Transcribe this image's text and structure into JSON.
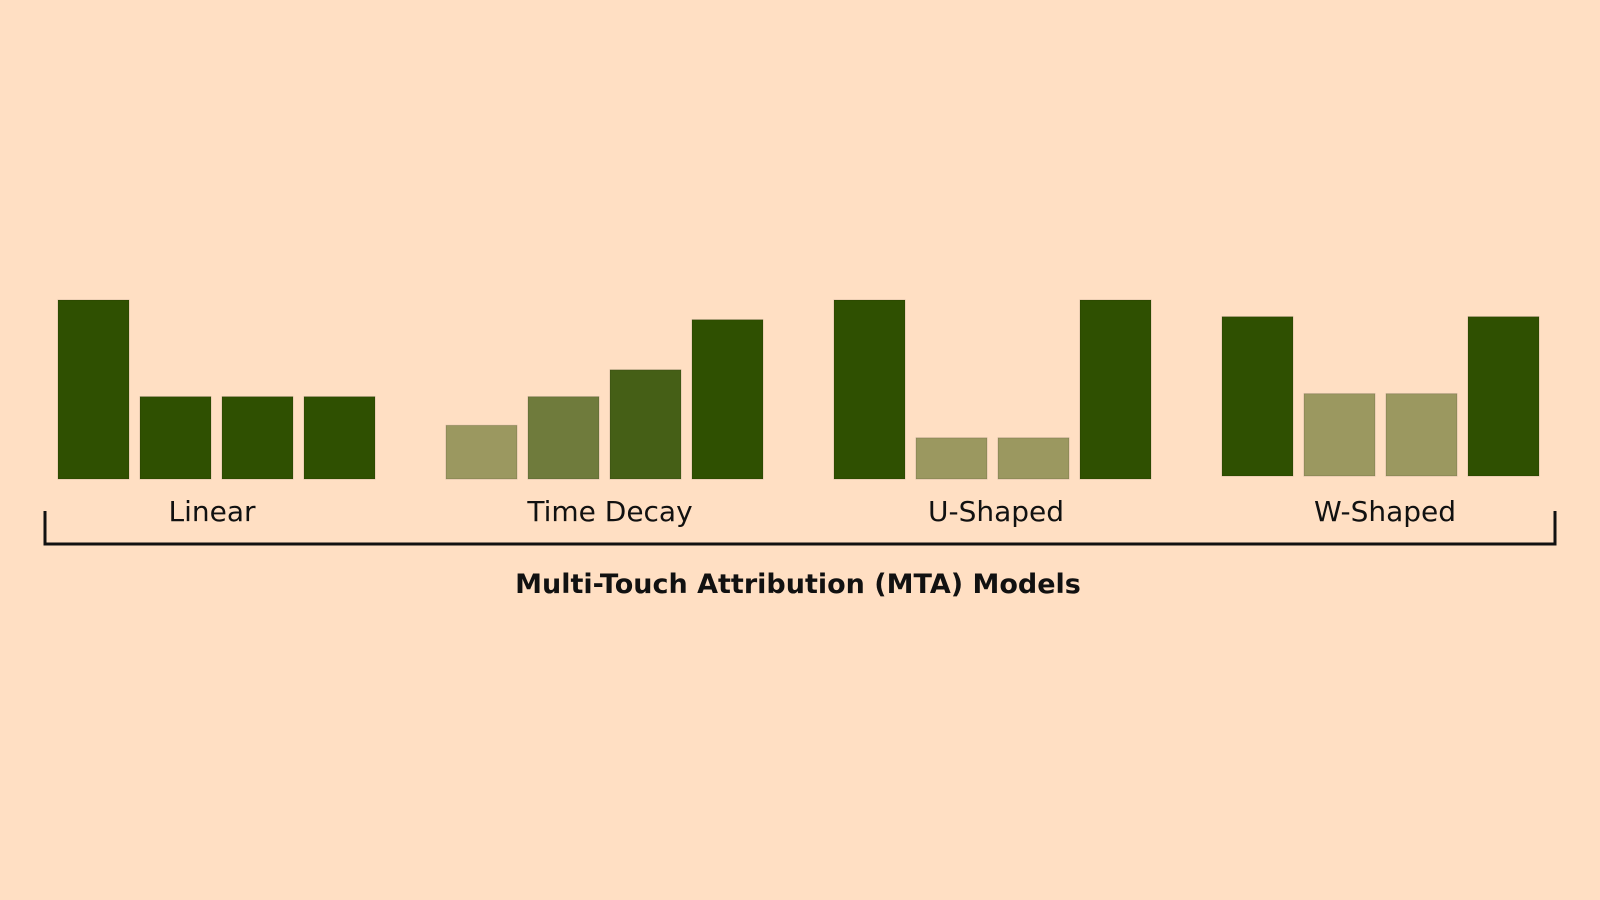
{
  "colors": {
    "background": "#FFDFC3",
    "high": "#2F5001",
    "mid_dark": "#455F16",
    "mid": "#6F7B3C",
    "low": "#9B9860",
    "bracket": "#111111"
  },
  "chart_data": {
    "type": "bar",
    "title": "Multi-Touch Attribution (MTA) Models",
    "models": [
      {
        "name": "Linear",
        "values": [
          1.0,
          0.46,
          0.46,
          0.46
        ],
        "colors": [
          "high",
          "high",
          "high",
          "high"
        ]
      },
      {
        "name": "Time Decay",
        "values": [
          0.3,
          0.46,
          0.61,
          0.89
        ],
        "colors": [
          "low",
          "mid",
          "mid_dark",
          "high"
        ]
      },
      {
        "name": "U-Shaped",
        "values": [
          1.0,
          0.23,
          0.23,
          1.0
        ],
        "colors": [
          "high",
          "low",
          "low",
          "high"
        ]
      },
      {
        "name": "W-Shaped",
        "values": [
          0.89,
          0.46,
          0.46,
          0.89
        ],
        "colors": [
          "high",
          "low",
          "low",
          "high"
        ]
      }
    ]
  }
}
